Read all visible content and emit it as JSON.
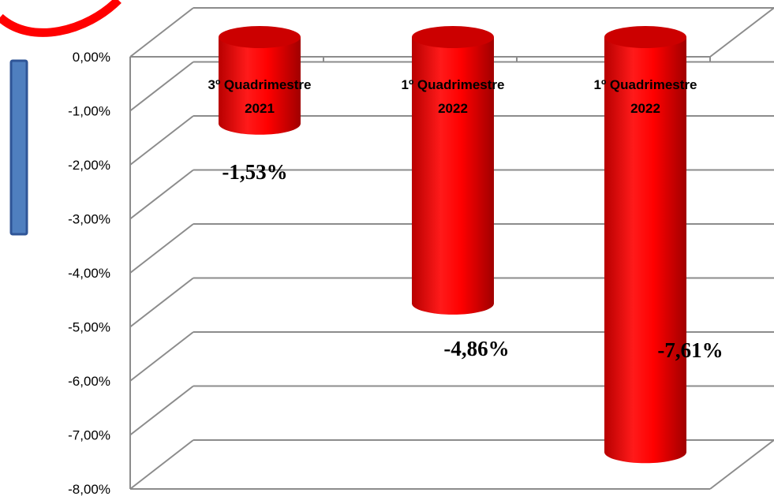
{
  "colors": {
    "bar": "#ff0000",
    "bar_dark": "#b80000",
    "bar_top": "#cc0000",
    "grid": "#8c8c8c",
    "side_bar": "#4f7fbf",
    "side_bar_border": "#2f5597",
    "ring": "#ff0000"
  },
  "chart_data": {
    "type": "bar",
    "style": "3d-cylinder",
    "categories": [
      [
        "3º Quadrimestre",
        "2021"
      ],
      [
        "1º Quadrimestre",
        "2022"
      ],
      [
        "1º Quadrimestre",
        "2022"
      ]
    ],
    "values": [
      -1.53,
      -4.86,
      -7.61
    ],
    "value_labels": [
      "-1,53%",
      "-4,86%",
      "-7,61%"
    ],
    "y_ticks": [
      "0,00%",
      "-1,00%",
      "-2,00%",
      "-3,00%",
      "-4,00%",
      "-5,00%",
      "-6,00%",
      "-7,00%",
      "-8,00%"
    ],
    "ylim": [
      -8,
      0
    ],
    "grid": true,
    "title": "",
    "xlabel": "",
    "ylabel": ""
  }
}
